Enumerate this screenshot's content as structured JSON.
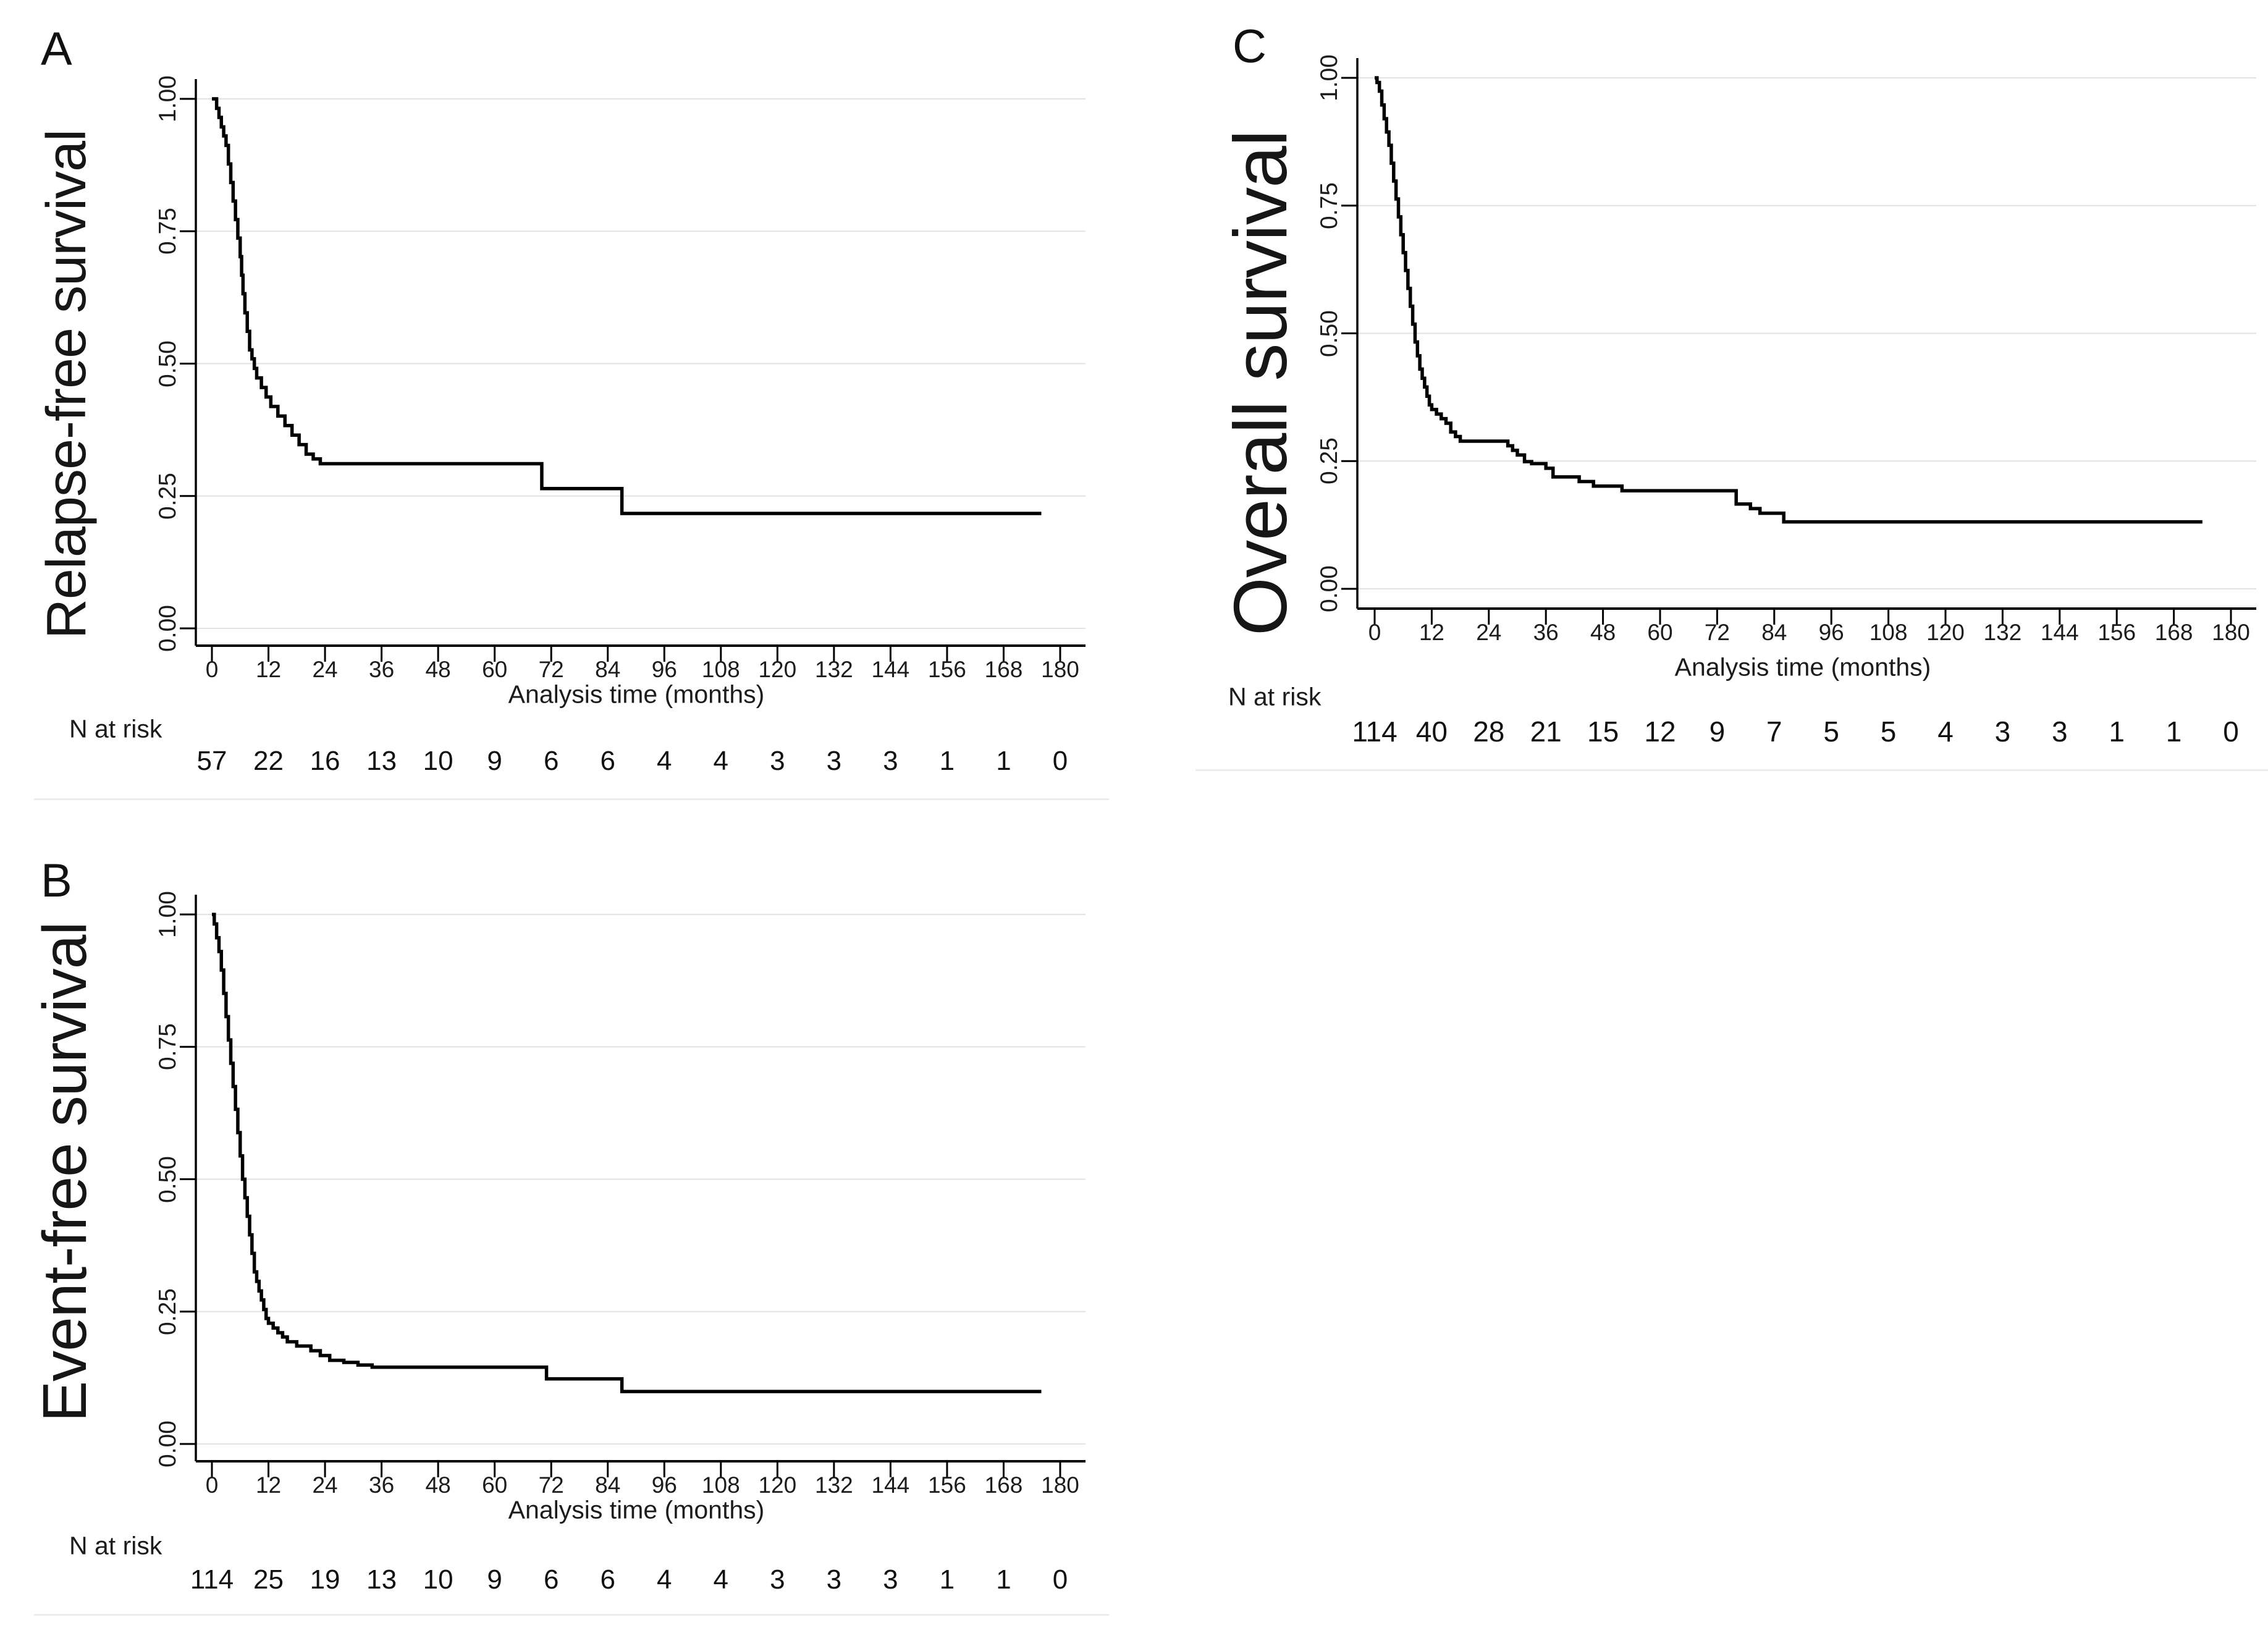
{
  "figure": {
    "background": "#ffffff",
    "curve_color": "#000000",
    "axis_color": "#000000",
    "grid_color": "#e2e2e2",
    "text_color": "#1c1c1c"
  },
  "chart_data": [
    {
      "id": "A",
      "type": "line",
      "subtype": "kaplan-meier-step",
      "letter": "A",
      "ylabel": "Relapse-free survival",
      "xlabel": "Analysis time (months)",
      "risk_label": "N at risk",
      "xlim": [
        0,
        180
      ],
      "ylim": [
        0,
        1
      ],
      "grid": true,
      "legend": "none",
      "x_ticks": [
        0,
        12,
        24,
        36,
        48,
        60,
        72,
        84,
        96,
        108,
        120,
        132,
        144,
        156,
        168,
        180
      ],
      "y_ticks": [
        "1.00",
        "0.75",
        "0.50",
        "0.25",
        "0.00"
      ],
      "risk_values": [
        57,
        22,
        16,
        13,
        10,
        9,
        6,
        6,
        4,
        4,
        3,
        3,
        3,
        1,
        1,
        0
      ],
      "km_points": [
        [
          0,
          1.0
        ],
        [
          1,
          0.982
        ],
        [
          1.5,
          0.965
        ],
        [
          2,
          0.947
        ],
        [
          2.5,
          0.93
        ],
        [
          3,
          0.912
        ],
        [
          3.5,
          0.877
        ],
        [
          4,
          0.842
        ],
        [
          4.5,
          0.807
        ],
        [
          5,
          0.772
        ],
        [
          5.5,
          0.737
        ],
        [
          6,
          0.702
        ],
        [
          6.3,
          0.667
        ],
        [
          6.6,
          0.632
        ],
        [
          7,
          0.596
        ],
        [
          7.5,
          0.561
        ],
        [
          8,
          0.526
        ],
        [
          8.5,
          0.509
        ],
        [
          9,
          0.491
        ],
        [
          9.5,
          0.473
        ],
        [
          10.5,
          0.455
        ],
        [
          11.5,
          0.437
        ],
        [
          12.5,
          0.419
        ],
        [
          14,
          0.401
        ],
        [
          15.5,
          0.383
        ],
        [
          17,
          0.365
        ],
        [
          18.5,
          0.347
        ],
        [
          20,
          0.329
        ],
        [
          21.5,
          0.32
        ],
        [
          23,
          0.311
        ],
        [
          70,
          0.264
        ],
        [
          87,
          0.217
        ]
      ],
      "end_time": 176
    },
    {
      "id": "B",
      "type": "line",
      "subtype": "kaplan-meier-step",
      "letter": "B",
      "ylabel": "Event-free survival",
      "xlabel": "Analysis time (months)",
      "risk_label": "N at risk",
      "xlim": [
        0,
        180
      ],
      "ylim": [
        0,
        1
      ],
      "grid": true,
      "legend": "none",
      "x_ticks": [
        0,
        12,
        24,
        36,
        48,
        60,
        72,
        84,
        96,
        108,
        120,
        132,
        144,
        156,
        168,
        180
      ],
      "y_ticks": [
        "1.00",
        "0.75",
        "0.50",
        "0.25",
        "0.00"
      ],
      "risk_values": [
        114,
        25,
        19,
        13,
        10,
        9,
        6,
        6,
        4,
        4,
        3,
        3,
        3,
        1,
        1,
        0
      ],
      "km_points": [
        [
          0,
          1.0
        ],
        [
          0.5,
          0.982
        ],
        [
          1,
          0.956
        ],
        [
          1.5,
          0.93
        ],
        [
          2,
          0.895
        ],
        [
          2.5,
          0.851
        ],
        [
          3,
          0.807
        ],
        [
          3.5,
          0.763
        ],
        [
          4,
          0.719
        ],
        [
          4.5,
          0.675
        ],
        [
          5,
          0.632
        ],
        [
          5.5,
          0.588
        ],
        [
          6,
          0.544
        ],
        [
          6.5,
          0.5
        ],
        [
          7,
          0.465
        ],
        [
          7.5,
          0.43
        ],
        [
          8,
          0.395
        ],
        [
          8.5,
          0.36
        ],
        [
          9,
          0.325
        ],
        [
          9.5,
          0.307
        ],
        [
          10,
          0.289
        ],
        [
          10.5,
          0.272
        ],
        [
          11,
          0.254
        ],
        [
          11.5,
          0.237
        ],
        [
          12,
          0.228
        ],
        [
          13,
          0.219
        ],
        [
          14,
          0.21
        ],
        [
          15,
          0.202
        ],
        [
          16,
          0.193
        ],
        [
          18,
          0.185
        ],
        [
          21,
          0.176
        ],
        [
          23,
          0.167
        ],
        [
          25,
          0.158
        ],
        [
          28,
          0.154
        ],
        [
          31,
          0.149
        ],
        [
          34,
          0.145
        ],
        [
          71,
          0.123
        ],
        [
          87,
          0.099
        ]
      ],
      "end_time": 176
    },
    {
      "id": "C",
      "type": "line",
      "subtype": "kaplan-meier-step",
      "letter": "C",
      "ylabel": "Overall survival",
      "xlabel": "Analysis time (months)",
      "risk_label": "N at risk",
      "xlim": [
        0,
        180
      ],
      "ylim": [
        0,
        1
      ],
      "grid": true,
      "legend": "none",
      "x_ticks": [
        0,
        12,
        24,
        36,
        48,
        60,
        72,
        84,
        96,
        108,
        120,
        132,
        144,
        156,
        168,
        180
      ],
      "y_ticks": [
        "1.00",
        "0.75",
        "0.50",
        "0.25",
        "0.00"
      ],
      "risk_values": [
        114,
        40,
        28,
        21,
        15,
        12,
        9,
        7,
        5,
        5,
        4,
        3,
        3,
        1,
        1,
        0
      ],
      "km_points": [
        [
          0,
          1.0
        ],
        [
          0.5,
          0.991
        ],
        [
          1,
          0.974
        ],
        [
          1.5,
          0.947
        ],
        [
          2,
          0.92
        ],
        [
          2.5,
          0.894
        ],
        [
          3,
          0.868
        ],
        [
          3.5,
          0.833
        ],
        [
          4,
          0.798
        ],
        [
          4.5,
          0.763
        ],
        [
          5,
          0.728
        ],
        [
          5.5,
          0.693
        ],
        [
          6,
          0.658
        ],
        [
          6.5,
          0.623
        ],
        [
          7,
          0.588
        ],
        [
          7.5,
          0.553
        ],
        [
          8,
          0.518
        ],
        [
          8.5,
          0.483
        ],
        [
          9,
          0.456
        ],
        [
          9.5,
          0.43
        ],
        [
          10,
          0.412
        ],
        [
          10.5,
          0.395
        ],
        [
          11,
          0.377
        ],
        [
          11.5,
          0.36
        ],
        [
          12,
          0.351
        ],
        [
          13,
          0.342
        ],
        [
          14,
          0.333
        ],
        [
          15,
          0.324
        ],
        [
          16,
          0.307
        ],
        [
          17,
          0.298
        ],
        [
          18,
          0.289
        ],
        [
          28,
          0.28
        ],
        [
          29,
          0.271
        ],
        [
          30,
          0.262
        ],
        [
          31.5,
          0.249
        ],
        [
          33,
          0.245
        ],
        [
          36,
          0.236
        ],
        [
          37.5,
          0.219
        ],
        [
          43,
          0.21
        ],
        [
          46,
          0.201
        ],
        [
          52,
          0.192
        ],
        [
          76,
          0.166
        ],
        [
          79,
          0.157
        ],
        [
          81,
          0.148
        ],
        [
          86,
          0.131
        ]
      ],
      "end_time": 174
    }
  ]
}
